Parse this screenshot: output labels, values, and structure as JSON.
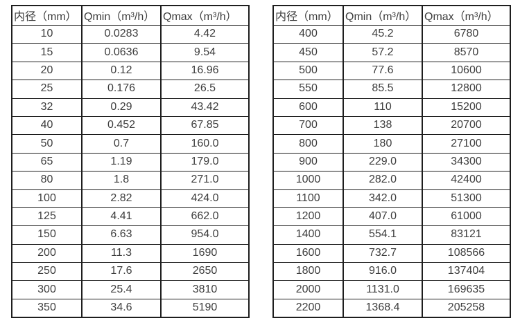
{
  "colors": {
    "border": "#1e1e1e",
    "text": "#3d3d3d",
    "background": "#ffffff"
  },
  "chart_data": [
    {
      "type": "table",
      "title": "",
      "columns": [
        "内径（mm）",
        "Qmin（m³/h）",
        "Qmax（m³/h）"
      ],
      "rows": [
        [
          "10",
          "0.0283",
          "4.42"
        ],
        [
          "15",
          "0.0636",
          "9.54"
        ],
        [
          "20",
          "0.12",
          "16.96"
        ],
        [
          "25",
          "0.176",
          "26.5"
        ],
        [
          "32",
          "0.29",
          "43.42"
        ],
        [
          "40",
          "0.452",
          "67.85"
        ],
        [
          "50",
          "0.7",
          "160.0"
        ],
        [
          "65",
          "1.19",
          "179.0"
        ],
        [
          "80",
          "1.8",
          "271.0"
        ],
        [
          "100",
          "2.82",
          "424.0"
        ],
        [
          "125",
          "4.41",
          "662.0"
        ],
        [
          "150",
          "6.63",
          "954.0"
        ],
        [
          "200",
          "11.3",
          "1690"
        ],
        [
          "250",
          "17.6",
          "2650"
        ],
        [
          "300",
          "25.4",
          "3810"
        ],
        [
          "350",
          "34.6",
          "5190"
        ]
      ]
    },
    {
      "type": "table",
      "title": "",
      "columns": [
        "内径（mm）",
        "Qmin（m³/h）",
        "Qmax（m³/h）"
      ],
      "rows": [
        [
          "400",
          "45.2",
          "6780"
        ],
        [
          "450",
          "57.2",
          "8570"
        ],
        [
          "500",
          "77.6",
          "10600"
        ],
        [
          "550",
          "85.5",
          "12800"
        ],
        [
          "600",
          "110",
          "15200"
        ],
        [
          "700",
          "138",
          "20700"
        ],
        [
          "800",
          "180",
          "27100"
        ],
        [
          "900",
          "229.0",
          "34300"
        ],
        [
          "1000",
          "282.0",
          "42400"
        ],
        [
          "1100",
          "342.0",
          "51300"
        ],
        [
          "1200",
          "407.0",
          "61000"
        ],
        [
          "1400",
          "554.1",
          "83121"
        ],
        [
          "1600",
          "732.7",
          "108566"
        ],
        [
          "1800",
          "916.0",
          "137404"
        ],
        [
          "2000",
          "1131.0",
          "169635"
        ],
        [
          "2200",
          "1368.4",
          "205258"
        ]
      ]
    }
  ]
}
